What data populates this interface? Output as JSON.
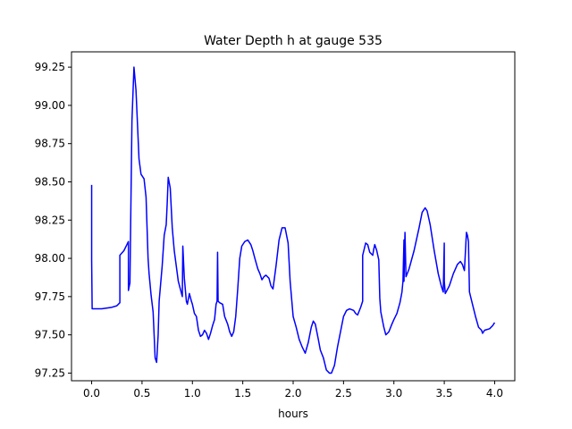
{
  "chart_data": {
    "type": "line",
    "title": "Water Depth h at gauge 535",
    "xlabel": "hours",
    "ylabel": "",
    "xlim": [
      -0.2,
      4.2
    ],
    "ylim": [
      97.2,
      99.35
    ],
    "xticks": [
      0.0,
      0.5,
      1.0,
      1.5,
      2.0,
      2.5,
      3.0,
      3.5,
      4.0
    ],
    "xtick_labels": [
      "0.0",
      "0.5",
      "1.0",
      "1.5",
      "2.0",
      "2.5",
      "3.0",
      "3.5",
      "4.0"
    ],
    "yticks": [
      97.25,
      97.5,
      97.75,
      98.0,
      98.25,
      98.5,
      98.75,
      99.0,
      99.25
    ],
    "ytick_labels": [
      "97.25",
      "97.50",
      "97.75",
      "98.00",
      "98.25",
      "98.50",
      "98.75",
      "99.00",
      "99.25"
    ],
    "grid": false,
    "series": [
      {
        "color": "#0000ff",
        "points": [
          [
            0.0,
            98.48
          ],
          [
            0.0,
            97.99
          ],
          [
            0.005,
            97.67
          ],
          [
            0.1,
            97.67
          ],
          [
            0.2,
            97.68
          ],
          [
            0.25,
            97.69
          ],
          [
            0.28,
            97.71
          ],
          [
            0.28,
            98.02
          ],
          [
            0.32,
            98.05
          ],
          [
            0.35,
            98.09
          ],
          [
            0.365,
            98.11
          ],
          [
            0.365,
            97.79
          ],
          [
            0.38,
            97.84
          ],
          [
            0.4,
            98.9
          ],
          [
            0.42,
            99.25
          ],
          [
            0.44,
            99.1
          ],
          [
            0.47,
            98.65
          ],
          [
            0.49,
            98.55
          ],
          [
            0.52,
            98.52
          ],
          [
            0.54,
            98.4
          ],
          [
            0.56,
            98.0
          ],
          [
            0.57,
            97.9
          ],
          [
            0.59,
            97.76
          ],
          [
            0.61,
            97.65
          ],
          [
            0.62,
            97.5
          ],
          [
            0.63,
            97.35
          ],
          [
            0.645,
            97.32
          ],
          [
            0.66,
            97.5
          ],
          [
            0.67,
            97.72
          ],
          [
            0.7,
            97.95
          ],
          [
            0.72,
            98.15
          ],
          [
            0.74,
            98.22
          ],
          [
            0.75,
            98.36
          ],
          [
            0.76,
            98.53
          ],
          [
            0.78,
            98.46
          ],
          [
            0.8,
            98.2
          ],
          [
            0.82,
            98.05
          ],
          [
            0.84,
            97.95
          ],
          [
            0.86,
            97.85
          ],
          [
            0.88,
            97.8
          ],
          [
            0.9,
            97.75
          ],
          [
            0.905,
            98.08
          ],
          [
            0.92,
            97.87
          ],
          [
            0.94,
            97.72
          ],
          [
            0.95,
            97.7
          ],
          [
            0.97,
            97.77
          ],
          [
            0.99,
            97.72
          ],
          [
            1.0,
            97.7
          ],
          [
            1.02,
            97.64
          ],
          [
            1.04,
            97.62
          ],
          [
            1.06,
            97.53
          ],
          [
            1.08,
            97.49
          ],
          [
            1.1,
            97.5
          ],
          [
            1.12,
            97.53
          ],
          [
            1.14,
            97.51
          ],
          [
            1.16,
            97.47
          ],
          [
            1.18,
            97.51
          ],
          [
            1.2,
            97.56
          ],
          [
            1.22,
            97.6
          ],
          [
            1.235,
            97.7
          ],
          [
            1.245,
            97.72
          ],
          [
            1.25,
            98.04
          ],
          [
            1.255,
            97.72
          ],
          [
            1.27,
            97.71
          ],
          [
            1.3,
            97.7
          ],
          [
            1.32,
            97.62
          ],
          [
            1.35,
            97.57
          ],
          [
            1.37,
            97.52
          ],
          [
            1.39,
            97.49
          ],
          [
            1.41,
            97.52
          ],
          [
            1.43,
            97.62
          ],
          [
            1.45,
            97.8
          ],
          [
            1.47,
            98.0
          ],
          [
            1.49,
            98.08
          ],
          [
            1.52,
            98.11
          ],
          [
            1.55,
            98.12
          ],
          [
            1.58,
            98.09
          ],
          [
            1.6,
            98.05
          ],
          [
            1.62,
            98.0
          ],
          [
            1.65,
            97.93
          ],
          [
            1.67,
            97.9
          ],
          [
            1.69,
            97.86
          ],
          [
            1.71,
            97.88
          ],
          [
            1.73,
            97.89
          ],
          [
            1.76,
            97.87
          ],
          [
            1.78,
            97.82
          ],
          [
            1.8,
            97.8
          ],
          [
            1.83,
            97.95
          ],
          [
            1.86,
            98.12
          ],
          [
            1.89,
            98.2
          ],
          [
            1.92,
            98.2
          ],
          [
            1.95,
            98.1
          ],
          [
            1.97,
            97.85
          ],
          [
            2.0,
            97.62
          ],
          [
            2.03,
            97.55
          ],
          [
            2.06,
            97.47
          ],
          [
            2.09,
            97.42
          ],
          [
            2.12,
            97.38
          ],
          [
            2.15,
            97.45
          ],
          [
            2.18,
            97.55
          ],
          [
            2.2,
            97.59
          ],
          [
            2.22,
            97.57
          ],
          [
            2.25,
            97.47
          ],
          [
            2.27,
            97.4
          ],
          [
            2.3,
            97.35
          ],
          [
            2.33,
            97.27
          ],
          [
            2.36,
            97.25
          ],
          [
            2.38,
            97.25
          ],
          [
            2.41,
            97.3
          ],
          [
            2.44,
            97.42
          ],
          [
            2.47,
            97.52
          ],
          [
            2.5,
            97.62
          ],
          [
            2.53,
            97.66
          ],
          [
            2.56,
            97.67
          ],
          [
            2.6,
            97.66
          ],
          [
            2.62,
            97.64
          ],
          [
            2.64,
            97.63
          ],
          [
            2.67,
            97.68
          ],
          [
            2.69,
            97.72
          ],
          [
            2.69,
            98.02
          ],
          [
            2.72,
            98.1
          ],
          [
            2.74,
            98.09
          ],
          [
            2.76,
            98.04
          ],
          [
            2.79,
            98.02
          ],
          [
            2.8,
            98.06
          ],
          [
            2.81,
            98.09
          ],
          [
            2.83,
            98.05
          ],
          [
            2.85,
            97.99
          ],
          [
            2.86,
            97.74
          ],
          [
            2.87,
            97.65
          ],
          [
            2.9,
            97.55
          ],
          [
            2.92,
            97.5
          ],
          [
            2.95,
            97.52
          ],
          [
            2.98,
            97.57
          ],
          [
            3.0,
            97.6
          ],
          [
            3.03,
            97.64
          ],
          [
            3.06,
            97.71
          ],
          [
            3.08,
            97.78
          ],
          [
            3.09,
            97.85
          ],
          [
            3.1,
            98.12
          ],
          [
            3.1,
            97.85
          ],
          [
            3.11,
            98.17
          ],
          [
            3.12,
            97.88
          ],
          [
            3.15,
            97.93
          ],
          [
            3.2,
            98.05
          ],
          [
            3.25,
            98.2
          ],
          [
            3.28,
            98.3
          ],
          [
            3.31,
            98.33
          ],
          [
            3.33,
            98.31
          ],
          [
            3.36,
            98.22
          ],
          [
            3.4,
            98.05
          ],
          [
            3.44,
            97.9
          ],
          [
            3.47,
            97.82
          ],
          [
            3.49,
            97.78
          ],
          [
            3.5,
            98.1
          ],
          [
            3.5,
            97.85
          ],
          [
            3.51,
            97.77
          ],
          [
            3.55,
            97.82
          ],
          [
            3.59,
            97.9
          ],
          [
            3.63,
            97.96
          ],
          [
            3.66,
            97.98
          ],
          [
            3.68,
            97.96
          ],
          [
            3.7,
            97.92
          ],
          [
            3.72,
            98.17
          ],
          [
            3.73,
            98.15
          ],
          [
            3.74,
            98.11
          ],
          [
            3.75,
            97.78
          ],
          [
            3.78,
            97.7
          ],
          [
            3.81,
            97.62
          ],
          [
            3.84,
            97.55
          ],
          [
            3.87,
            97.53
          ],
          [
            3.88,
            97.51
          ],
          [
            3.9,
            97.53
          ],
          [
            3.95,
            97.54
          ],
          [
            3.98,
            97.56
          ],
          [
            4.0,
            97.58
          ]
        ]
      }
    ]
  }
}
